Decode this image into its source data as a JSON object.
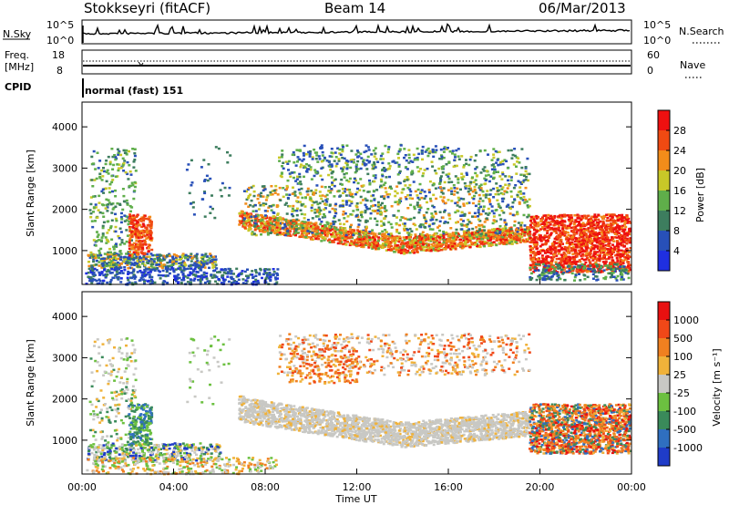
{
  "header": {
    "station": "Stokkseyri (fitACF)",
    "beam": "Beam 14",
    "date": "06/Mar/2013"
  },
  "top_panels": {
    "nsky_label": "N.Sky",
    "nsky_tick_hi": "10^5",
    "nsky_tick_lo": "10^0",
    "nsearch_label": "N.Search",
    "nsearch_tick_hi": "10^5",
    "nsearch_tick_lo": "10^0",
    "freq_label": "Freq.",
    "freq_unit": "[MHz]",
    "freq_tick_hi": "18",
    "freq_tick_lo": "8",
    "nave_label": "Nave",
    "nave_tick_hi": "60",
    "nave_tick_lo": "0",
    "cpid_label": "CPID",
    "cpid_value": "normal (fast) 151"
  },
  "chart_data": [
    {
      "type": "heatmap",
      "panel": "power",
      "ylabel": "Slant Range [km]",
      "ylim": [
        180,
        4600
      ],
      "yticks": [
        "1000",
        "2000",
        "3000",
        "4000"
      ],
      "xlim_hours": [
        0,
        24
      ],
      "colorbar_label": "Power [dB]",
      "colorbar_ticks": [
        "4",
        "8",
        "12",
        "16",
        "20",
        "24",
        "28"
      ],
      "colorbar_range": [
        0,
        32
      ],
      "colors": [
        "#1f2fe0",
        "#2850b8",
        "#3d7d5e",
        "#5fae4a",
        "#c8c828",
        "#f28c1a",
        "#f04a12",
        "#ee1010"
      ]
    },
    {
      "type": "heatmap",
      "panel": "velocity",
      "ylabel": "Slant Range [km]",
      "ylim": [
        180,
        4600
      ],
      "yticks": [
        "1000",
        "2000",
        "3000",
        "4000"
      ],
      "xlim_hours": [
        0,
        24
      ],
      "colorbar_label": "Velocity [m s⁻¹]",
      "colorbar_ticks": [
        "1000",
        "500",
        "100",
        "25",
        "-25",
        "-100",
        "-500",
        "-1000"
      ],
      "colors": [
        "#1f3cc8",
        "#2f6fc0",
        "#3a8a5a",
        "#6cc040",
        "#c8c8c4",
        "#f0b23a",
        "#f08020",
        "#f04818",
        "#e81010"
      ]
    }
  ],
  "xaxis": {
    "ticks": [
      "00:00",
      "04:00",
      "08:00",
      "12:00",
      "16:00",
      "20:00",
      "00:00"
    ],
    "label": "Time UT"
  }
}
